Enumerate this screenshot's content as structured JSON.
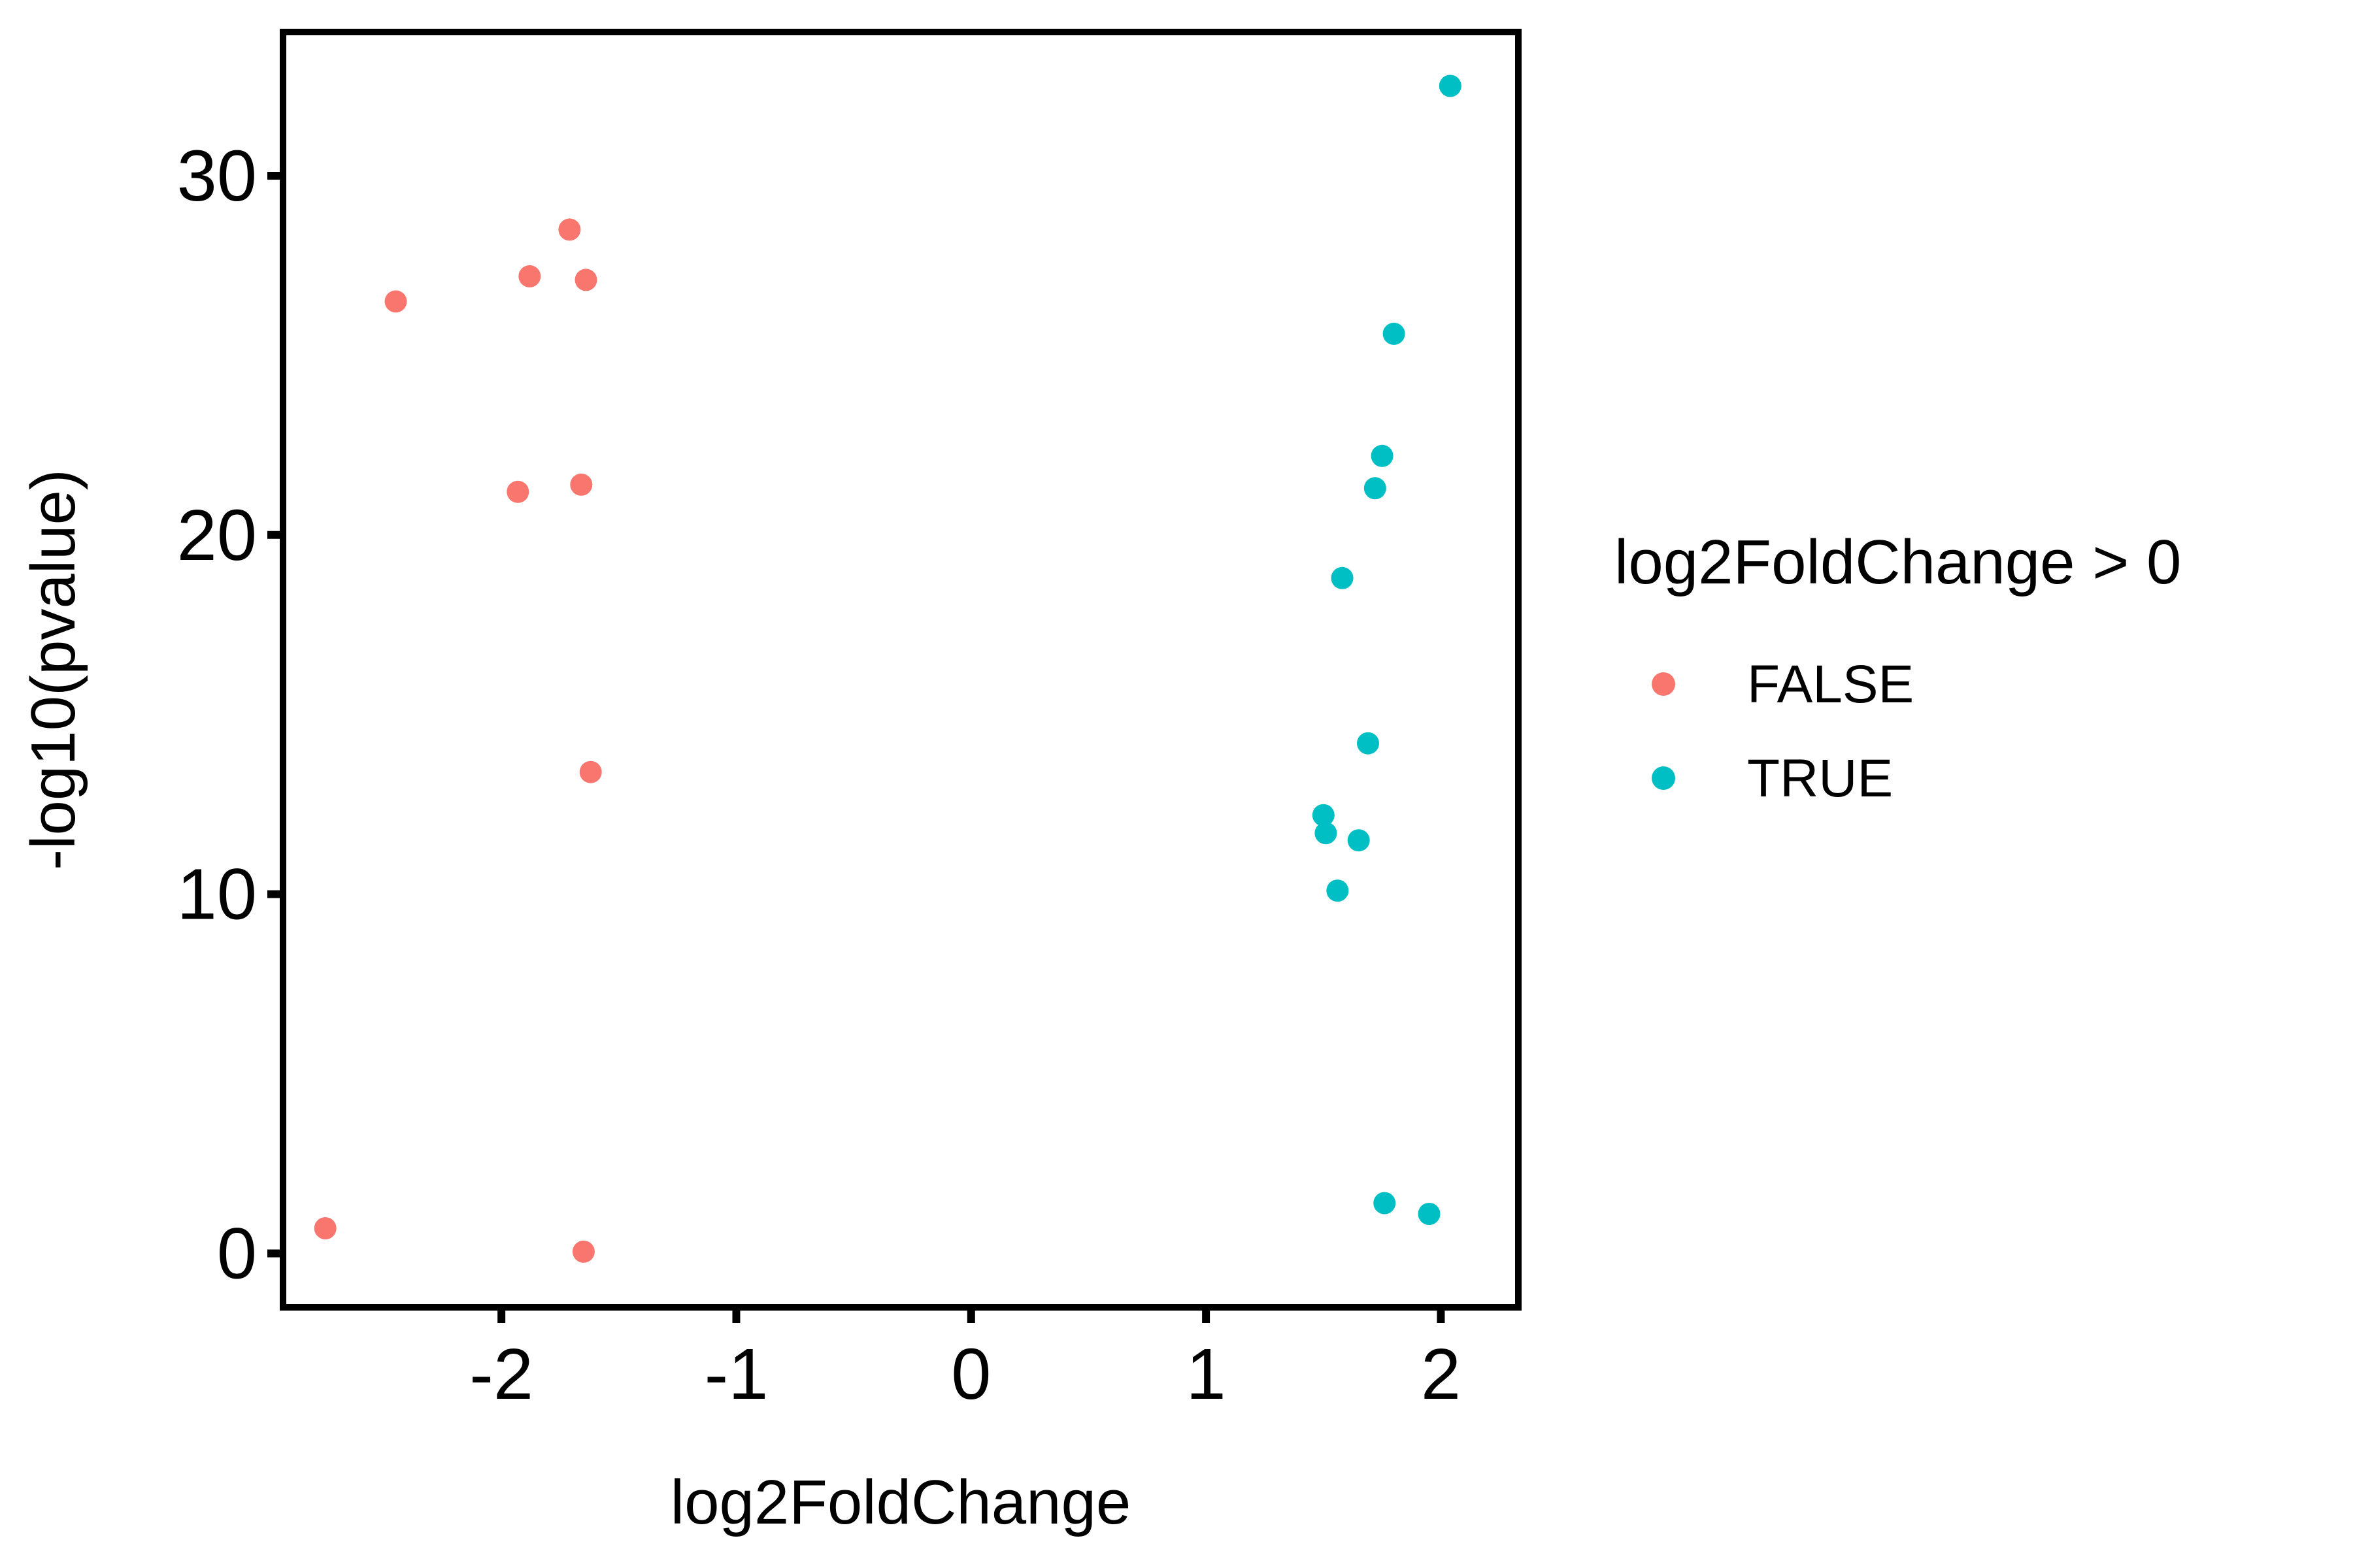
{
  "chart_data": {
    "type": "scatter",
    "title": "",
    "xlabel": "log2FoldChange",
    "ylabel": "-log10(pvalue)",
    "xlim": [
      -2.93,
      2.33
    ],
    "ylim": [
      -1.5,
      34
    ],
    "x_ticks": [
      -2,
      -1,
      0,
      1,
      2
    ],
    "y_ticks": [
      0,
      10,
      20,
      30
    ],
    "grid": false,
    "legend": {
      "title": "log2FoldChange > 0",
      "placement": "right"
    },
    "series": [
      {
        "name": "FALSE",
        "color": "#F8766D",
        "points": [
          {
            "x": -2.75,
            "y": 0.7
          },
          {
            "x": -1.65,
            "y": 0.05
          },
          {
            "x": -2.45,
            "y": 26.5
          },
          {
            "x": -1.88,
            "y": 27.2
          },
          {
            "x": -1.71,
            "y": 28.5
          },
          {
            "x": -1.64,
            "y": 27.1
          },
          {
            "x": -1.93,
            "y": 21.2
          },
          {
            "x": -1.66,
            "y": 21.4
          },
          {
            "x": -1.62,
            "y": 13.4
          }
        ]
      },
      {
        "name": "TRUE",
        "color": "#00BFC4",
        "points": [
          {
            "x": 2.04,
            "y": 32.5
          },
          {
            "x": 1.8,
            "y": 25.6
          },
          {
            "x": 1.75,
            "y": 22.2
          },
          {
            "x": 1.72,
            "y": 21.3
          },
          {
            "x": 1.58,
            "y": 18.8
          },
          {
            "x": 1.69,
            "y": 14.2
          },
          {
            "x": 1.5,
            "y": 12.2
          },
          {
            "x": 1.51,
            "y": 11.7
          },
          {
            "x": 1.65,
            "y": 11.5
          },
          {
            "x": 1.56,
            "y": 10.1
          },
          {
            "x": 1.76,
            "y": 1.4
          },
          {
            "x": 1.95,
            "y": 1.1
          }
        ]
      }
    ]
  }
}
